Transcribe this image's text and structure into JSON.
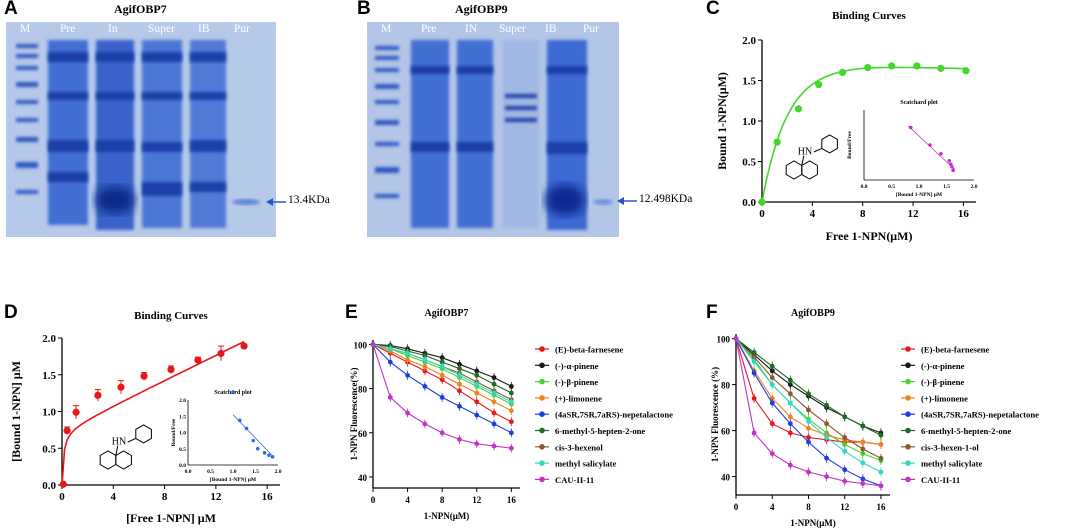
{
  "panelA": {
    "letter": "A",
    "title": "AgifOBP7",
    "lanes": [
      "M",
      "Pre",
      "In",
      "Super",
      "IB",
      "Pur"
    ],
    "band_label": "13.4KDa"
  },
  "panelB": {
    "letter": "B",
    "title": "AgifOBP9",
    "lanes": [
      "M",
      "Pre",
      "IN",
      "Super",
      "IB",
      "Pur"
    ],
    "band_label": "12.498KDa"
  },
  "panelC": {
    "letter": "C",
    "inset": {
      "title": "Scatchard plot",
      "xlabel": "[Bound 1-NPN] μM",
      "ylabel": "Bound/Free",
      "xticks": [
        "0.0",
        "0.5",
        "1.0",
        "1.5",
        "2.0"
      ],
      "points": [
        [
          0.85,
          0.6
        ],
        [
          1.2,
          0.4
        ],
        [
          1.4,
          0.3
        ],
        [
          1.55,
          0.22
        ],
        [
          1.6,
          0.15
        ],
        [
          1.62,
          0.11
        ],
        [
          1.58,
          0.18
        ]
      ]
    },
    "molecule": "HN",
    "colors": {
      "series": "#44d62c",
      "inset": "#c331c8"
    }
  },
  "panelD": {
    "letter": "D",
    "inset": {
      "title": "Scatchard plot",
      "xlabel": "[Bound 1-NPN] μM",
      "ylabel": "Bound/Free",
      "xticks": [
        "0.0",
        "0.5",
        "1.0",
        "1.5",
        "2.0"
      ],
      "yticks": [
        "0.0",
        "0.5",
        "1.0",
        "1.5",
        "2.0"
      ],
      "points": [
        [
          1.0,
          0.9
        ],
        [
          1.15,
          0.55
        ],
        [
          1.3,
          0.45
        ],
        [
          1.45,
          0.3
        ],
        [
          1.55,
          0.2
        ],
        [
          1.7,
          0.15
        ],
        [
          1.8,
          0.12
        ],
        [
          1.88,
          0.1
        ]
      ]
    },
    "molecule": "HN",
    "colors": {
      "series": "#e8171a",
      "inset": "#2c6be0"
    }
  },
  "panelE": {
    "letter": "E"
  },
  "panelF": {
    "letter": "F"
  },
  "chart_data": [
    {
      "id": "C",
      "type": "scatter",
      "title": "Binding Curves",
      "xlabel": "Free 1-NPN(μM)",
      "ylabel": "Bound 1-NPN(μM)",
      "xlim": [
        0,
        17
      ],
      "ylim": [
        0,
        2.0
      ],
      "xticks": [
        "0",
        "4",
        "8",
        "12",
        "16"
      ],
      "yticks": [
        "0.0",
        "0.5",
        "1.0",
        "1.5",
        "2.0"
      ],
      "x": [
        0,
        1.2,
        2.9,
        4.5,
        6.4,
        8.4,
        10.3,
        12.3,
        14.2,
        16.2
      ],
      "y": [
        0,
        0.74,
        1.15,
        1.45,
        1.6,
        1.66,
        1.68,
        1.68,
        1.65,
        1.62
      ]
    },
    {
      "id": "D",
      "type": "scatter",
      "title": "Binding Curves",
      "xlabel": "[Free 1-NPN] μM",
      "ylabel": "[Bound 1-NPN] μM",
      "xlim": [
        0,
        17
      ],
      "ylim": [
        0,
        2.0
      ],
      "xticks": [
        "0",
        "4",
        "8",
        "12",
        "16"
      ],
      "yticks": [
        "0.0",
        "0.5",
        "1.0",
        "1.5",
        "2.0"
      ],
      "x": [
        0.1,
        0.4,
        1.1,
        2.8,
        4.6,
        6.4,
        8.5,
        10.6,
        12.4,
        14.2
      ],
      "y": [
        0.01,
        0.74,
        0.99,
        1.22,
        1.33,
        1.48,
        1.57,
        1.7,
        1.79,
        1.89
      ],
      "err": [
        0,
        0.05,
        0.09,
        0.08,
        0.09,
        0.05,
        0.05,
        0.04,
        0.1,
        0.02
      ]
    },
    {
      "id": "E",
      "type": "line",
      "title": "AgifOBP7",
      "xlabel": "1-NPN(μM)",
      "ylabel": "1-NPN Fluorescence(%)",
      "xlim": [
        0,
        17
      ],
      "ylim": [
        35,
        102
      ],
      "xticks": [
        "0",
        "4",
        "8",
        "12",
        "16"
      ],
      "yticks": [
        "40",
        "60",
        "80",
        "100"
      ],
      "x": [
        0,
        2,
        4,
        6,
        8,
        10,
        12,
        14,
        16
      ],
      "series": [
        {
          "name": "(E)-beta-farnesene",
          "color": "#e8171a",
          "values": [
            100,
            96,
            92,
            88,
            84,
            79,
            74,
            69,
            65
          ]
        },
        {
          "name": "(-)-α-pinene",
          "color": "#1a1a1a",
          "values": [
            100,
            99.5,
            98,
            96,
            94,
            91,
            88,
            85,
            81
          ]
        },
        {
          "name": "(-)-β-pinene",
          "color": "#44d62c",
          "values": [
            100,
            98,
            95,
            92,
            89,
            85,
            81,
            77,
            73
          ]
        },
        {
          "name": "(+)-limonene",
          "color": "#f0821e",
          "values": [
            100,
            97,
            93,
            90,
            86,
            82,
            78,
            74,
            70
          ]
        },
        {
          "name": "(4aSR,7SR,7aRS)-nepetalactone",
          "color": "#1c3fe0",
          "values": [
            100,
            92,
            86,
            81,
            76,
            72,
            68,
            64,
            60
          ]
        },
        {
          "name": "6-methyl-5-hepten-2-one",
          "color": "#1e6b23",
          "values": [
            100,
            99,
            97,
            95,
            92,
            89,
            86,
            82,
            78
          ]
        },
        {
          "name": "cis-3-hexenol",
          "color": "#8a5a2b",
          "values": [
            100,
            98,
            96,
            93,
            90,
            87,
            83,
            79,
            75
          ]
        },
        {
          "name": "methyl salicylate",
          "color": "#35d6c2",
          "values": [
            100,
            98,
            96,
            93,
            90,
            86,
            82,
            78,
            74
          ]
        },
        {
          "name": "CAU-II-11",
          "color": "#c331c8",
          "values": [
            100,
            76,
            69,
            64,
            60,
            57,
            55,
            54,
            53
          ]
        }
      ]
    },
    {
      "id": "F",
      "type": "line",
      "title": "AgifOBP9",
      "xlabel": "1-NPN(μM)",
      "ylabel": "1-NPN Fluorescence (%)",
      "xlim": [
        0,
        17
      ],
      "ylim": [
        32,
        102
      ],
      "xticks": [
        "0",
        "4",
        "8",
        "12",
        "16"
      ],
      "yticks": [
        "40",
        "60",
        "80",
        "100"
      ],
      "x": [
        0,
        2,
        4,
        6,
        8,
        10,
        12,
        14,
        16
      ],
      "series": [
        {
          "name": "(E)-beta-farnesene",
          "color": "#e8171a",
          "values": [
            100,
            74,
            63,
            59,
            57,
            56,
            55,
            55,
            54
          ]
        },
        {
          "name": "(-)-α-pinene",
          "color": "#1a1a1a",
          "values": [
            100,
            93,
            86,
            80,
            75,
            70,
            66,
            62,
            59
          ]
        },
        {
          "name": "(-)-β-pinene",
          "color": "#44d62c",
          "values": [
            100,
            91,
            80,
            72,
            65,
            59,
            54,
            50,
            47
          ]
        },
        {
          "name": "(+)-limonene",
          "color": "#f0821e",
          "values": [
            100,
            86,
            74,
            66,
            61,
            58,
            56,
            55,
            54
          ]
        },
        {
          "name": "(4aSR,7SR,7aRS)-nepetalactone",
          "color": "#1c3fe0",
          "values": [
            100,
            85,
            72,
            63,
            55,
            48,
            43,
            39,
            36
          ]
        },
        {
          "name": "6-methyl-5-hepten-2-one",
          "color": "#1e6b23",
          "values": [
            100,
            94,
            88,
            82,
            76,
            71,
            66,
            62,
            58
          ]
        },
        {
          "name": "cis-3-hexen-1-ol",
          "color": "#8a5a2b",
          "values": [
            100,
            92,
            83,
            76,
            69,
            63,
            57,
            52,
            48
          ]
        },
        {
          "name": "methyl salicylate",
          "color": "#35d6c2",
          "values": [
            100,
            90,
            80,
            72,
            64,
            57,
            51,
            46,
            42
          ]
        },
        {
          "name": "CAU-II-11",
          "color": "#c331c8",
          "values": [
            100,
            59,
            50,
            45,
            42,
            40,
            38,
            37,
            36
          ]
        }
      ]
    }
  ]
}
